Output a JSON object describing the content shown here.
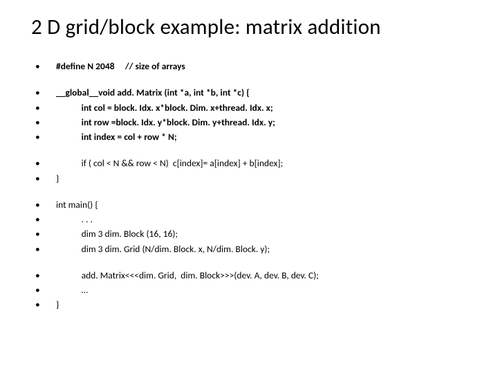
{
  "title": "2 D grid/block example: matrix addition",
  "bullet_char": "•",
  "fontsize_title": 31,
  "fontsize_body": 13.5,
  "text_color": "#000000",
  "background_color": "#ffffff",
  "groups": [
    {
      "lines": [
        {
          "bold": true,
          "text": "#define N 2048     // size of arrays"
        }
      ]
    },
    {
      "lines": [
        {
          "bold": true,
          "text": "__global__void add. Matrix (int *a, int *b, int *c) {"
        },
        {
          "bold": true,
          "text": "            int col = block. Idx. x*block. Dim. x+thread. Idx. x;"
        },
        {
          "bold": true,
          "text": "            int row =block. Idx. y*block. Dim. y+thread. Idx. y;"
        },
        {
          "bold": true,
          "text": "            int index = col + row * N;"
        }
      ]
    },
    {
      "lines": [
        {
          "bold": false,
          "text": "            if ( col < N && row < N)  c[index]= a[index] + b[index];"
        },
        {
          "bold": false,
          "text": "}"
        }
      ]
    },
    {
      "lines": [
        {
          "bold": false,
          "text": "int main() {"
        },
        {
          "bold": false,
          "text": "            . . ."
        },
        {
          "bold": false,
          "text": "            dim 3 dim. Block (16, 16);"
        },
        {
          "bold": false,
          "text": "            dim 3 dim. Grid (N/dim. Block. x, N/dim. Block. y);"
        }
      ]
    },
    {
      "lines": [
        {
          "bold": false,
          "text": "            add. Matrix<<<dim. Grid,  dim. Block>>>(dev. A, dev. B, dev. C);"
        },
        {
          "bold": false,
          "text": "            …"
        },
        {
          "bold": false,
          "text": "}"
        }
      ]
    }
  ]
}
